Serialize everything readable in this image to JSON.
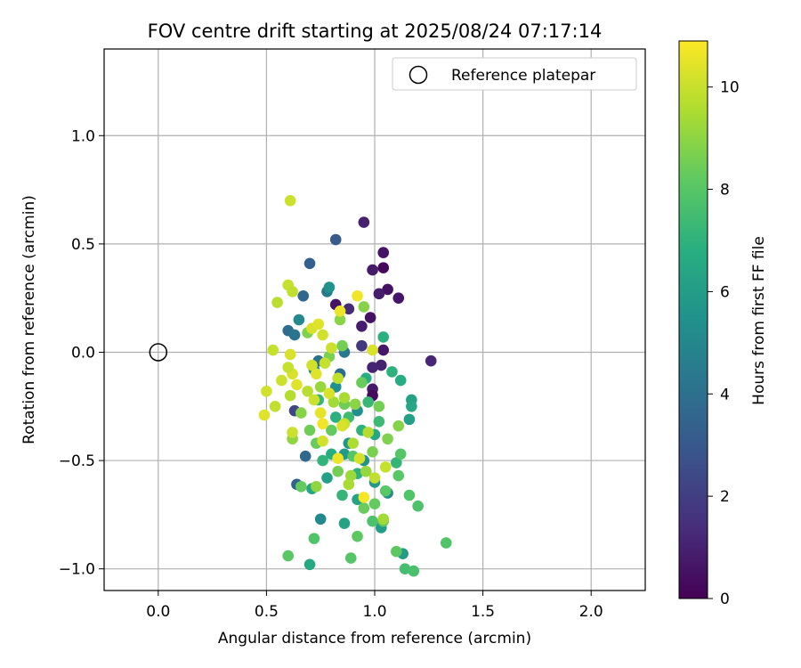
{
  "chart_data": {
    "type": "scatter",
    "title": "FOV centre drift starting at 2025/08/24 07:17:14",
    "xlabel": "Angular distance from reference (arcmin)",
    "ylabel": "Rotation from reference (arcmin)",
    "xlim": [
      -0.25,
      2.25
    ],
    "ylim": [
      -1.1,
      1.4
    ],
    "xticks": [
      0.0,
      0.5,
      1.0,
      1.5,
      2.0
    ],
    "xtick_labels": [
      "0.0",
      "0.5",
      "1.0",
      "1.5",
      "2.0"
    ],
    "yticks": [
      -1.0,
      -0.5,
      0.0,
      0.5,
      1.0
    ],
    "ytick_labels": [
      "−1.0",
      "−0.5",
      "0.0",
      "0.5",
      "1.0"
    ],
    "grid": true,
    "colormap": "viridis",
    "colorbar": {
      "label": "Hours from first FF file",
      "range": [
        0,
        10.9
      ],
      "ticks": [
        0,
        2,
        4,
        6,
        8,
        10
      ],
      "tick_labels": [
        "0",
        "2",
        "4",
        "6",
        "8",
        "10"
      ]
    },
    "legend": {
      "position": "top-right",
      "entries": [
        "Reference platepar"
      ]
    },
    "reference_point": {
      "x": 0.0,
      "y": 0.0,
      "name": "Reference platepar"
    },
    "points": [
      [
        0.95,
        0.6,
        1.0
      ],
      [
        1.04,
        0.46,
        0.6
      ],
      [
        1.04,
        0.39,
        0.2
      ],
      [
        0.99,
        0.38,
        0.8
      ],
      [
        1.06,
        0.29,
        0.5
      ],
      [
        1.02,
        0.27,
        0.9
      ],
      [
        1.11,
        0.25,
        0.7
      ],
      [
        1.26,
        -0.04,
        1.2
      ],
      [
        0.98,
        0.16,
        0.5
      ],
      [
        0.94,
        0.12,
        0.9
      ],
      [
        0.82,
        0.22,
        0.6
      ],
      [
        1.04,
        0.01,
        0.7
      ],
      [
        1.03,
        -0.06,
        1.0
      ],
      [
        0.99,
        -0.07,
        1.1
      ],
      [
        0.99,
        -0.17,
        0.8
      ],
      [
        0.99,
        -0.2,
        0.3
      ],
      [
        0.88,
        0.2,
        1.3
      ],
      [
        0.94,
        0.03,
        1.8
      ],
      [
        0.63,
        -0.27,
        2.3
      ],
      [
        0.82,
        0.52,
        3.1
      ],
      [
        0.7,
        0.41,
        3.3
      ],
      [
        0.67,
        0.26,
        3.6
      ],
      [
        0.6,
        0.1,
        3.9
      ],
      [
        0.63,
        0.08,
        4.2
      ],
      [
        0.64,
        -0.61,
        3.5
      ],
      [
        0.68,
        -0.48,
        3.7
      ],
      [
        0.84,
        -0.1,
        3.9
      ],
      [
        0.78,
        0.28,
        4.5
      ],
      [
        0.74,
        -0.04,
        4.0
      ],
      [
        0.86,
        0.0,
        4.4
      ],
      [
        0.65,
        0.15,
        5.1
      ],
      [
        0.79,
        0.3,
        5.6
      ],
      [
        0.72,
        -0.08,
        5.2
      ],
      [
        0.82,
        -0.16,
        5.5
      ],
      [
        0.75,
        -0.77,
        5.1
      ],
      [
        0.92,
        -0.27,
        5.4
      ],
      [
        0.88,
        -0.42,
        5.7
      ],
      [
        0.95,
        -0.5,
        5.6
      ],
      [
        1.0,
        -0.6,
        5.8
      ],
      [
        1.06,
        -0.65,
        5.3
      ],
      [
        1.13,
        -0.93,
        6.0
      ],
      [
        1.16,
        -0.31,
        6.1
      ],
      [
        1.17,
        -0.22,
        6.3
      ],
      [
        1.17,
        -0.25,
        6.5
      ],
      [
        1.12,
        -0.13,
        6.7
      ],
      [
        1.04,
        0.07,
        6.9
      ],
      [
        1.08,
        -0.09,
        7.0
      ],
      [
        0.71,
        -0.63,
        6.5
      ],
      [
        0.7,
        -0.98,
        6.6
      ],
      [
        0.86,
        -0.47,
        5.9
      ],
      [
        0.78,
        -0.58,
        6.2
      ],
      [
        0.92,
        -0.68,
        6.4
      ],
      [
        1.03,
        -0.81,
        6.0
      ],
      [
        1.0,
        -0.38,
        6.6
      ],
      [
        0.96,
        -0.12,
        6.8
      ],
      [
        0.92,
        -0.56,
        7.0
      ],
      [
        0.86,
        -0.79,
        6.4
      ],
      [
        0.8,
        -0.47,
        6.8
      ],
      [
        0.76,
        -0.5,
        7.1
      ],
      [
        0.74,
        -0.22,
        7.2
      ],
      [
        0.82,
        -0.3,
        6.9
      ],
      [
        0.85,
        -0.66,
        7.2
      ],
      [
        0.97,
        -0.23,
        7.3
      ],
      [
        1.1,
        -0.51,
        7.2
      ],
      [
        1.02,
        -0.32,
        7.4
      ],
      [
        0.94,
        -0.36,
        7.0
      ],
      [
        0.88,
        -0.3,
        7.5
      ],
      [
        1.14,
        -1.0,
        7.6
      ],
      [
        1.18,
        -1.01,
        7.7
      ],
      [
        1.2,
        -0.71,
        7.8
      ],
      [
        1.16,
        -0.66,
        7.9
      ],
      [
        1.12,
        -0.47,
        8.0
      ],
      [
        1.11,
        -0.57,
        8.1
      ],
      [
        1.33,
        -0.88,
        7.9
      ],
      [
        1.1,
        -0.92,
        8.2
      ],
      [
        1.04,
        -0.78,
        8.3
      ],
      [
        1.05,
        -0.64,
        8.1
      ],
      [
        1.0,
        -0.7,
        8.3
      ],
      [
        0.99,
        -0.78,
        7.8
      ],
      [
        0.95,
        -0.72,
        8.4
      ],
      [
        0.92,
        -0.85,
        8.2
      ],
      [
        0.89,
        -0.95,
        8.0
      ],
      [
        0.72,
        -0.86,
        7.9
      ],
      [
        0.66,
        -0.62,
        8.3
      ],
      [
        0.6,
        -0.94,
        8.1
      ],
      [
        0.7,
        -0.36,
        8.5
      ],
      [
        0.73,
        -0.42,
        8.4
      ],
      [
        0.83,
        -0.55,
        8.6
      ],
      [
        0.9,
        -0.48,
        8.0
      ],
      [
        0.99,
        -0.46,
        8.7
      ],
      [
        1.06,
        -0.4,
        8.8
      ],
      [
        1.11,
        -0.34,
        8.9
      ],
      [
        1.02,
        -0.25,
        8.6
      ],
      [
        0.94,
        -0.14,
        8.4
      ],
      [
        0.86,
        -0.24,
        8.5
      ],
      [
        0.8,
        -0.36,
        8.3
      ],
      [
        0.79,
        -0.02,
        8.7
      ],
      [
        0.85,
        0.03,
        8.6
      ],
      [
        0.95,
        0.21,
        8.9
      ],
      [
        0.84,
        0.15,
        9.0
      ],
      [
        0.69,
        0.09,
        8.8
      ],
      [
        0.62,
        -0.4,
        9.1
      ],
      [
        0.66,
        -0.28,
        8.9
      ],
      [
        0.75,
        -0.16,
        9.2
      ],
      [
        0.81,
        -0.23,
        9.4
      ],
      [
        0.89,
        -0.57,
        9.3
      ],
      [
        0.88,
        -0.61,
        9.5
      ],
      [
        0.9,
        -0.42,
        9.6
      ],
      [
        0.96,
        -0.55,
        9.2
      ],
      [
        1.04,
        -0.77,
        9.4
      ],
      [
        0.97,
        -0.37,
        9.7
      ],
      [
        0.91,
        -0.24,
        9.0
      ],
      [
        0.86,
        -0.21,
        9.5
      ],
      [
        0.73,
        -0.62,
        9.1
      ],
      [
        0.55,
        0.23,
        9.8
      ],
      [
        0.53,
        0.01,
        10.0
      ],
      [
        0.5,
        -0.18,
        10.2
      ],
      [
        0.49,
        -0.29,
        10.4
      ],
      [
        0.54,
        -0.25,
        9.9
      ],
      [
        0.57,
        -0.13,
        10.1
      ],
      [
        0.61,
        -0.2,
        9.7
      ],
      [
        0.62,
        -0.1,
        10.3
      ],
      [
        0.6,
        0.31,
        10.0
      ],
      [
        0.62,
        0.28,
        9.9
      ],
      [
        0.61,
        0.7,
        10.1
      ],
      [
        0.71,
        -0.06,
        10.2
      ],
      [
        0.73,
        -0.1,
        10.4
      ],
      [
        0.77,
        -0.05,
        10.0
      ],
      [
        0.79,
        -0.19,
        10.3
      ],
      [
        0.75,
        -0.28,
        10.5
      ],
      [
        0.8,
        0.02,
        10.1
      ],
      [
        0.76,
        0.08,
        10.2
      ],
      [
        0.71,
        0.11,
        10.3
      ],
      [
        0.84,
        0.19,
        10.6
      ],
      [
        0.74,
        0.13,
        10.4
      ],
      [
        0.86,
        -0.33,
        10.0
      ],
      [
        0.83,
        -0.12,
        9.9
      ],
      [
        0.92,
        0.26,
        10.7
      ],
      [
        0.95,
        -0.67,
        10.8
      ],
      [
        0.83,
        -0.49,
        10.6
      ],
      [
        0.76,
        -0.33,
        10.7
      ],
      [
        0.76,
        -0.41,
        10.2
      ],
      [
        0.62,
        -0.37,
        10.1
      ],
      [
        0.64,
        -0.15,
        10.4
      ],
      [
        0.61,
        -0.01,
        10.3
      ],
      [
        0.6,
        -0.07,
        10.0
      ],
      [
        0.72,
        -0.22,
        10.1
      ],
      [
        0.69,
        -0.18,
        9.8
      ],
      [
        0.85,
        -0.34,
        10.3
      ],
      [
        0.93,
        -0.49,
        10.2
      ],
      [
        1.0,
        -0.58,
        9.9
      ],
      [
        1.05,
        -0.53,
        10.0
      ],
      [
        0.99,
        0.01,
        10.3
      ]
    ]
  }
}
